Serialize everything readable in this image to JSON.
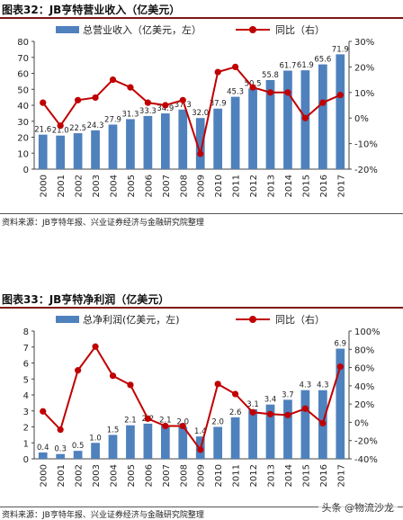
{
  "figure1": {
    "title": "图表32：JB亨特营业收入（亿美元）",
    "source": "资料来源：JB亨特年报、兴业证券经济与金融研究院整理"
  },
  "figure2": {
    "title": "图表33：JB亨特净利润（亿美元）",
    "source": "资料来源：JB亨特年报、兴业证券经济与金融研究院整理"
  },
  "watermark": "头条 @物流沙龙",
  "colors": {
    "bar": "#4f81bd",
    "line": "#c00000",
    "title_rule": "#7f1515"
  },
  "chart_data": [
    {
      "type": "bar+line",
      "categories": [
        "2000",
        "2001",
        "2002",
        "2003",
        "2004",
        "2005",
        "2006",
        "2007",
        "2008",
        "2009",
        "2010",
        "2011",
        "2012",
        "2013",
        "2014",
        "2015",
        "2016",
        "2017"
      ],
      "series": [
        {
          "name": "总营业收入（亿美元，左）",
          "type": "bar",
          "axis": "left",
          "values": [
            21.6,
            21.0,
            22.5,
            24.3,
            27.9,
            31.3,
            33.3,
            34.9,
            37.3,
            32.0,
            37.9,
            45.3,
            50.5,
            55.8,
            61.7,
            61.9,
            65.6,
            71.9
          ]
        },
        {
          "name": "同比（右）",
          "type": "line",
          "axis": "right",
          "values": [
            6,
            -3,
            7,
            8,
            15,
            12,
            6,
            5,
            7,
            -14,
            18,
            20,
            12,
            10,
            10,
            0,
            6,
            9
          ]
        }
      ],
      "ylim_left": [
        0,
        80
      ],
      "yticks_left": [
        0,
        10,
        20,
        30,
        40,
        50,
        60,
        70,
        80
      ],
      "ylim_right": [
        -20,
        30
      ],
      "yticks_right": [
        "-20%",
        "-10%",
        "0%",
        "10%",
        "20%",
        "30%"
      ],
      "legend_position": "top"
    },
    {
      "type": "bar+line",
      "categories": [
        "2000",
        "2001",
        "2002",
        "2003",
        "2004",
        "2005",
        "2006",
        "2007",
        "2008",
        "2009",
        "2010",
        "2011",
        "2012",
        "2013",
        "2014",
        "2015",
        "2016",
        "2017"
      ],
      "series": [
        {
          "name": "总净利润(亿美元，左)",
          "type": "bar",
          "axis": "left",
          "values": [
            0.4,
            0.3,
            0.5,
            1.0,
            1.5,
            2.1,
            2.2,
            2.1,
            2.0,
            1.4,
            2.0,
            2.6,
            3.1,
            3.4,
            3.7,
            4.3,
            4.3,
            6.9
          ]
        },
        {
          "name": "同比（右）",
          "type": "line",
          "axis": "right",
          "values": [
            12,
            -8,
            57,
            83,
            51,
            41,
            4,
            -4,
            -4,
            -30,
            42,
            31,
            11,
            9,
            8,
            15,
            -1,
            61
          ]
        }
      ],
      "ylim_left": [
        0,
        8
      ],
      "yticks_left": [
        0,
        1,
        2,
        3,
        4,
        5,
        6,
        7,
        8
      ],
      "ylim_right": [
        -40,
        100
      ],
      "yticks_right": [
        "-40%",
        "-20%",
        "0%",
        "20%",
        "40%",
        "60%",
        "80%",
        "100%"
      ],
      "legend_position": "top"
    }
  ]
}
